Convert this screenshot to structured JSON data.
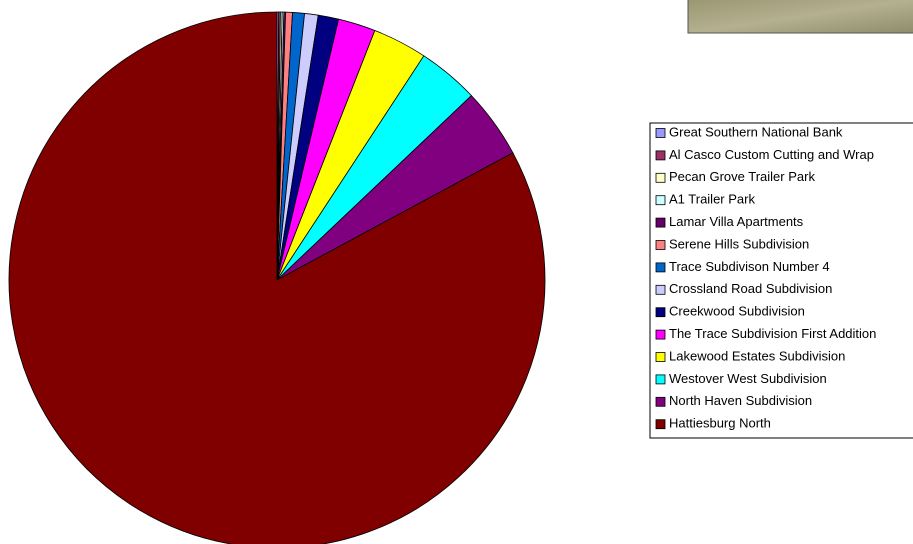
{
  "chart_data": {
    "type": "pie",
    "categories": [
      "Great Southern National Bank",
      "Al Casco Custom Cutting and Wrap",
      "Pecan Grove Trailer Park",
      "A1 Trailer Park",
      "Lamar Villa Apartments",
      "Serene Hills Subdivision",
      "Trace Subdivison Number 4",
      "Crossland Road Subdivision",
      "Creekwood Subdivision",
      "The Trace Subdivision First Addition",
      "Lakewood Estates Subdivision",
      "Westover West Subdivision",
      "North Haven Subdivision",
      "Hattiesburg North"
    ],
    "values": [
      0.1,
      0.1,
      0.1,
      0.1,
      0.1,
      0.4,
      0.7,
      0.8,
      1.2,
      2.2,
      3.2,
      3.6,
      4.1,
      80.8
    ],
    "colors": [
      "#9999ff",
      "#993366",
      "#ffffcc",
      "#ccffff",
      "#660066",
      "#ff8080",
      "#0066cc",
      "#ccccff",
      "#000080",
      "#ff00ff",
      "#ffff00",
      "#00ffff",
      "#800080",
      "#800000"
    ]
  }
}
